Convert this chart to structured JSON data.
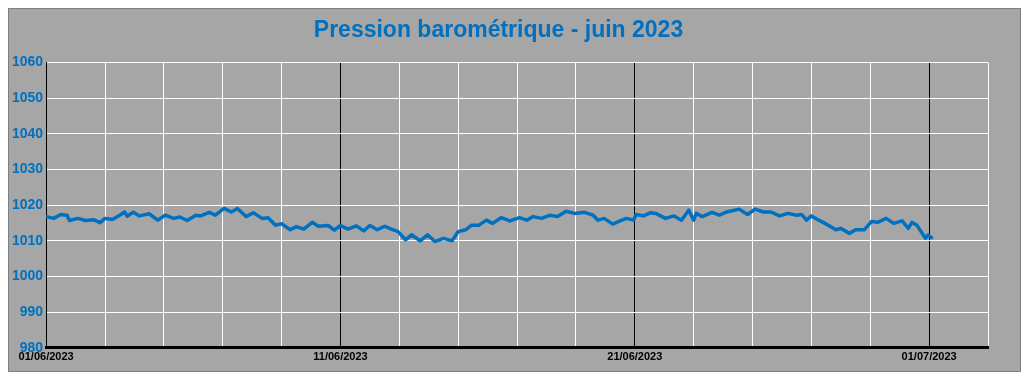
{
  "chart_data": {
    "type": "line",
    "title": "Pression barométrique - juin 2023",
    "x": [
      "2023-06-01T00:00",
      "2023-06-01T06:00",
      "2023-06-01T12:00",
      "2023-06-01T17:00",
      "2023-06-01T19:00",
      "2023-06-02T02:00",
      "2023-06-02T08:00",
      "2023-06-02T15:00",
      "2023-06-02T20:00",
      "2023-06-03T00:00",
      "2023-06-03T06:00",
      "2023-06-03T13:00",
      "2023-06-03T16:00",
      "2023-06-03T18:00",
      "2023-06-03T23:00",
      "2023-06-04T04:00",
      "2023-06-04T12:00",
      "2023-06-04T19:00",
      "2023-06-05T01:00",
      "2023-06-05T08:00",
      "2023-06-05T13:00",
      "2023-06-05T19:00",
      "2023-06-06T02:00",
      "2023-06-06T06:00",
      "2023-06-06T13:00",
      "2023-06-06T18:00",
      "2023-06-07T01:00",
      "2023-06-07T07:00",
      "2023-06-07T12:00",
      "2023-06-07T19:00",
      "2023-06-08T01:00",
      "2023-06-08T08:00",
      "2023-06-08T13:00",
      "2023-06-08T19:00",
      "2023-06-09T00:00",
      "2023-06-09T07:00",
      "2023-06-09T12:00",
      "2023-06-09T18:00",
      "2023-06-10T01:00",
      "2023-06-10T06:00",
      "2023-06-10T14:00",
      "2023-06-10T19:00",
      "2023-06-11T00:00",
      "2023-06-11T06:00",
      "2023-06-11T13:00",
      "2023-06-11T19:00",
      "2023-06-12T00:00",
      "2023-06-12T06:00",
      "2023-06-12T12:00",
      "2023-06-12T18:00",
      "2023-06-12T23:00",
      "2023-06-13T05:00",
      "2023-06-13T10:00",
      "2023-06-13T17:00",
      "2023-06-13T23:00",
      "2023-06-14T05:00",
      "2023-06-14T12:00",
      "2023-06-14T19:00",
      "2023-06-15T00:00",
      "2023-06-15T06:00",
      "2023-06-15T11:00",
      "2023-06-15T17:00",
      "2023-06-15T23:00",
      "2023-06-16T04:00",
      "2023-06-16T11:00",
      "2023-06-16T18:00",
      "2023-06-17T02:00",
      "2023-06-17T08:00",
      "2023-06-17T13:00",
      "2023-06-17T20:00",
      "2023-06-18T03:00",
      "2023-06-18T09:00",
      "2023-06-18T16:00",
      "2023-06-18T23:00",
      "2023-06-19T07:00",
      "2023-06-19T14:00",
      "2023-06-19T18:00",
      "2023-06-19T23:00",
      "2023-06-20T06:00",
      "2023-06-20T12:00",
      "2023-06-20T17:00",
      "2023-06-20T23:00",
      "2023-06-21T01:00",
      "2023-06-21T07:00",
      "2023-06-21T13:00",
      "2023-06-21T17:00",
      "2023-06-22T01:00",
      "2023-06-22T08:00",
      "2023-06-22T14:00",
      "2023-06-22T20:00",
      "2023-06-23T00:00",
      "2023-06-23T02:00",
      "2023-06-23T07:00",
      "2023-06-23T15:00",
      "2023-06-23T21:00",
      "2023-06-24T03:00",
      "2023-06-24T13:00",
      "2023-06-24T20:00",
      "2023-06-25T02:00",
      "2023-06-25T09:00",
      "2023-06-25T15:00",
      "2023-06-25T22:00",
      "2023-06-26T05:00",
      "2023-06-26T12:00",
      "2023-06-26T16:00",
      "2023-06-26T20:00",
      "2023-06-27T00:00",
      "2023-06-27T06:00",
      "2023-06-27T11:00",
      "2023-06-27T20:00",
      "2023-06-28T00:00",
      "2023-06-28T07:00",
      "2023-06-28T12:00",
      "2023-06-28T19:00",
      "2023-06-29T01:00",
      "2023-06-29T06:00",
      "2023-06-29T13:00",
      "2023-06-29T19:00",
      "2023-06-30T02:00",
      "2023-06-30T07:00",
      "2023-06-30T10:00",
      "2023-06-30T14:00",
      "2023-06-30T21:00",
      "2023-06-30T23:00",
      "2023-07-01T02:00"
    ],
    "series": [
      {
        "color": "#0070c0",
        "values": [
          1016.8,
          1016.3,
          1017.4,
          1017.2,
          1015.7,
          1016.3,
          1015.7,
          1015.9,
          1015.1,
          1016.3,
          1016.0,
          1017.4,
          1018.1,
          1016.9,
          1018.0,
          1017.0,
          1017.6,
          1015.8,
          1017.2,
          1016.3,
          1016.7,
          1015.7,
          1017.2,
          1017.0,
          1018.0,
          1017.2,
          1019.1,
          1018.1,
          1019.1,
          1016.8,
          1017.9,
          1016.3,
          1016.5,
          1014.4,
          1014.8,
          1013.1,
          1014.0,
          1013.3,
          1015.2,
          1014.1,
          1014.3,
          1013.0,
          1014.3,
          1013.3,
          1014.2,
          1012.8,
          1014.3,
          1013.1,
          1014.1,
          1013.2,
          1012.6,
          1010.3,
          1011.7,
          1010.0,
          1011.7,
          1009.8,
          1010.7,
          1010.0,
          1012.6,
          1013.1,
          1014.4,
          1014.4,
          1015.8,
          1014.9,
          1016.5,
          1015.6,
          1016.5,
          1015.8,
          1016.8,
          1016.3,
          1017.2,
          1016.8,
          1018.3,
          1017.7,
          1018.0,
          1017.2,
          1015.8,
          1016.3,
          1014.7,
          1015.6,
          1016.3,
          1015.8,
          1017.4,
          1017.0,
          1017.9,
          1017.7,
          1016.3,
          1017.0,
          1015.8,
          1018.6,
          1015.8,
          1017.7,
          1016.8,
          1018.0,
          1017.2,
          1018.1,
          1018.9,
          1017.4,
          1018.9,
          1018.1,
          1018.1,
          1017.0,
          1017.7,
          1017.2,
          1017.4,
          1015.8,
          1017.0,
          1015.8,
          1014.9,
          1013.1,
          1013.5,
          1012.1,
          1013.1,
          1013.1,
          1015.4,
          1015.2,
          1016.3,
          1014.9,
          1015.6,
          1013.5,
          1015.2,
          1014.4,
          1010.7,
          1011.6,
          1010.9
        ]
      }
    ],
    "xlim": [
      "2023-06-01",
      "2023-07-03"
    ],
    "xticks": [
      {
        "value": "2023-06-01",
        "label": "01/06/2023"
      },
      {
        "value": "2023-06-03",
        "label": null
      },
      {
        "value": "2023-06-05",
        "label": null
      },
      {
        "value": "2023-06-07",
        "label": null
      },
      {
        "value": "2023-06-09",
        "label": null
      },
      {
        "value": "2023-06-11",
        "label": "11/06/2023"
      },
      {
        "value": "2023-06-13",
        "label": null
      },
      {
        "value": "2023-06-15",
        "label": null
      },
      {
        "value": "2023-06-17",
        "label": null
      },
      {
        "value": "2023-06-19",
        "label": null
      },
      {
        "value": "2023-06-21",
        "label": "21/06/2023"
      },
      {
        "value": "2023-06-23",
        "label": null
      },
      {
        "value": "2023-06-25",
        "label": null
      },
      {
        "value": "2023-06-27",
        "label": null
      },
      {
        "value": "2023-06-29",
        "label": null
      },
      {
        "value": "2023-07-01",
        "label": "01/07/2023"
      },
      {
        "value": "2023-07-03",
        "label": null
      }
    ],
    "ylim": [
      980,
      1060
    ],
    "yticks": [
      980,
      990,
      1000,
      1010,
      1020,
      1030,
      1040,
      1050,
      1060
    ],
    "grid": true,
    "legend": false,
    "marker": "none",
    "line_style": "solid"
  }
}
